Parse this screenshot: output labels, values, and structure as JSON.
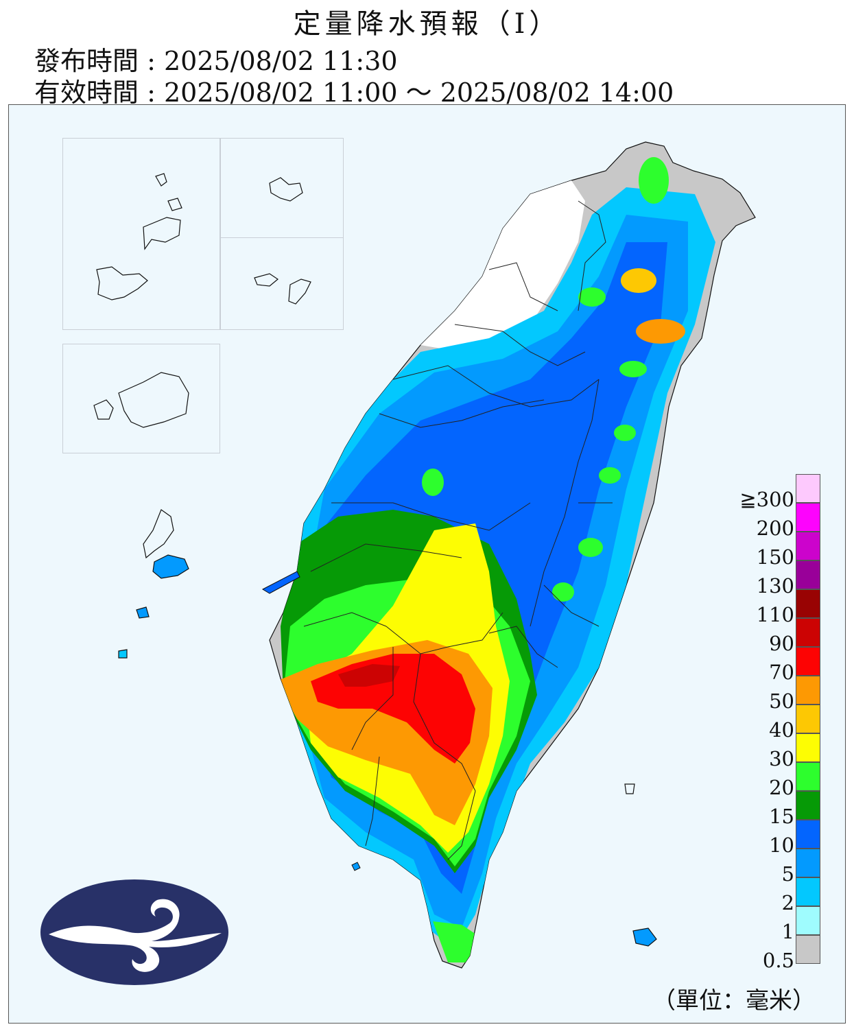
{
  "header": {
    "title": "定量降水預報（Ⅰ）",
    "issued": "發布時間 : 2025/08/02 11:30",
    "valid": "有效時間 : 2025/08/02 11:00 ～ 2025/08/02 14:00"
  },
  "legend": {
    "unit": "（單位：毫米）",
    "levels": [
      {
        "label": "0.5",
        "color": "#c8c8c8"
      },
      {
        "label": "1",
        "color": "#9ffcfe"
      },
      {
        "label": "2",
        "color": "#03c8fe"
      },
      {
        "label": "5",
        "color": "#039afe"
      },
      {
        "label": "10",
        "color": "#0365fe"
      },
      {
        "label": "15",
        "color": "#069a06"
      },
      {
        "label": "20",
        "color": "#2dfe2d"
      },
      {
        "label": "30",
        "color": "#fdfd03"
      },
      {
        "label": "40",
        "color": "#fdc803"
      },
      {
        "label": "50",
        "color": "#fd9903"
      },
      {
        "label": "70",
        "color": "#fd0303"
      },
      {
        "label": "90",
        "color": "#cc0303"
      },
      {
        "label": "110",
        "color": "#990303"
      },
      {
        "label": "130",
        "color": "#990099"
      },
      {
        "label": "150",
        "color": "#cc03cc"
      },
      {
        "label": "200",
        "color": "#fd03fd"
      },
      {
        "label": "≧300",
        "color": "#fdc9fd"
      }
    ]
  },
  "map": {
    "background": "#eef8fd",
    "outline": "#111111",
    "logo_color": "#283168",
    "icons": [
      "cwa-logo-icon"
    ]
  }
}
